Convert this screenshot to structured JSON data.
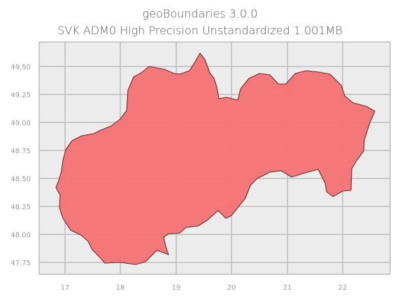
{
  "title": {
    "line1": "geoBoundaries 3.0.0",
    "line2": "SVK ADM0 High Precision Unstandardized 1.001MB"
  },
  "map": {
    "region": "SVK",
    "fill_color": "#f47174",
    "edge_color": "#6b2b2b",
    "background_color": "#ececec",
    "grid_color": "#b5b5b5",
    "x_ticks": [
      "17",
      "18",
      "19",
      "20",
      "21",
      "22"
    ],
    "y_ticks": [
      "49.50",
      "49.25",
      "49.00",
      "48.75",
      "48.50",
      "48.25",
      "48.00",
      "47.75"
    ]
  }
}
